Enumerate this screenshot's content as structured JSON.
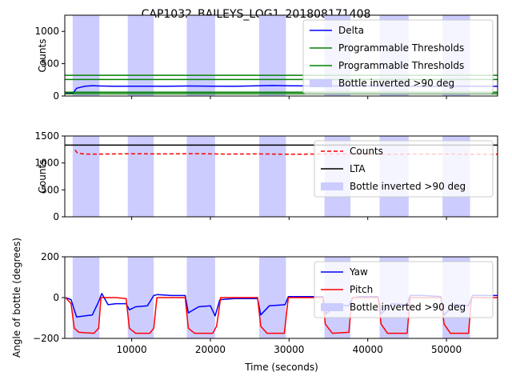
{
  "figure": {
    "suptitle": "CAP1032_BAILEYS_LOG1_201808171408",
    "xlabel": "Time (seconds)"
  },
  "colors": {
    "delta": "#0000ff",
    "thresholds": "#008000",
    "counts": "#ff0000",
    "lta": "#000000",
    "yaw": "#0000ff",
    "pitch": "#ff0000",
    "inverted_span": "#ccccff"
  },
  "chart_data": [
    {
      "type": "line",
      "ylabel": "Counts",
      "xlim": [
        1500,
        56500
      ],
      "ylim": [
        0,
        1250
      ],
      "xticks": [
        10000,
        20000,
        30000,
        40000,
        50000
      ],
      "yticks": [
        0,
        500,
        1000
      ],
      "ytick_labels": [
        "0",
        "500",
        "1000"
      ],
      "legend": [
        "Delta",
        "Programmable Thresholds",
        "Programmable Thresholds",
        "Bottle inverted >90 deg"
      ],
      "legend_position": "upper right",
      "inverted_spans": [
        [
          2500,
          5900
        ],
        [
          9500,
          12800
        ],
        [
          17000,
          20600
        ],
        [
          26200,
          29600
        ],
        [
          34500,
          37800
        ],
        [
          41500,
          45200
        ],
        [
          49500,
          53000
        ]
      ],
      "series": [
        {
          "name": "Delta",
          "style": "solid",
          "x": [
            1600,
            2500,
            3000,
            4000,
            5000,
            6000,
            8000,
            10000,
            12000,
            14000,
            17000,
            20000,
            23000,
            26000,
            28000,
            30000,
            33000,
            36000,
            40000,
            44000,
            48000,
            52000,
            56500
          ],
          "y": [
            40,
            40,
            120,
            150,
            160,
            155,
            150,
            152,
            152,
            150,
            155,
            152,
            150,
            158,
            162,
            158,
            155,
            155,
            155,
            152,
            150,
            152,
            150
          ]
        },
        {
          "name": "Programmable Thresholds",
          "style": "solid",
          "x": [
            1500,
            56500
          ],
          "y": [
            320,
            320
          ]
        },
        {
          "name": "Programmable Thresholds",
          "style": "solid",
          "x": [
            1500,
            56500
          ],
          "y": [
            255,
            255
          ]
        },
        {
          "name": "Programmable Thresholds",
          "style": "solid",
          "x": [
            1500,
            56500
          ],
          "y": [
            60,
            60
          ]
        },
        {
          "name": "Programmable Thresholds",
          "style": "solid",
          "x": [
            1500,
            56500
          ],
          "y": [
            35,
            35
          ]
        }
      ]
    },
    {
      "type": "line",
      "ylabel": "Counts",
      "xlim": [
        1500,
        56500
      ],
      "ylim": [
        0,
        1500
      ],
      "xticks": [
        10000,
        20000,
        30000,
        40000,
        50000
      ],
      "yticks": [
        0,
        500,
        1000,
        1500
      ],
      "ytick_labels": [
        "0",
        "500",
        "1000",
        "1500"
      ],
      "legend": [
        "Counts",
        "LTA",
        "Bottle inverted >90 deg"
      ],
      "legend_position": "upper right",
      "inverted_spans": [
        [
          2500,
          5900
        ],
        [
          9500,
          12800
        ],
        [
          17000,
          20600
        ],
        [
          26200,
          29600
        ],
        [
          34500,
          37800
        ],
        [
          41500,
          45200
        ],
        [
          49500,
          53000
        ]
      ],
      "series": [
        {
          "name": "Counts",
          "style": "dashed",
          "x": [
            2800,
            3100,
            4000,
            6000,
            10000,
            14000,
            18000,
            22000,
            26000,
            30000,
            34000,
            38000,
            42000,
            46000,
            50000,
            54000,
            56500
          ],
          "y": [
            1240,
            1185,
            1165,
            1165,
            1170,
            1168,
            1172,
            1165,
            1168,
            1162,
            1165,
            1168,
            1162,
            1165,
            1165,
            1160,
            1162
          ]
        },
        {
          "name": "LTA",
          "style": "solid",
          "x": [
            1500,
            56500
          ],
          "y": [
            1330,
            1330
          ]
        }
      ]
    },
    {
      "type": "line",
      "ylabel": "Angle of bottle (degrees)",
      "xlim": [
        1500,
        56500
      ],
      "ylim": [
        -200,
        200
      ],
      "xticks": [
        10000,
        20000,
        30000,
        40000,
        50000
      ],
      "xtick_labels": [
        "10000",
        "20000",
        "30000",
        "40000",
        "50000"
      ],
      "yticks": [
        -200,
        0,
        200
      ],
      "ytick_labels": [
        "−200",
        "0",
        "200"
      ],
      "legend": [
        "Yaw",
        "Pitch",
        "Bottle inverted >90 deg"
      ],
      "legend_position": "upper right",
      "inverted_spans": [
        [
          2500,
          5900
        ],
        [
          9500,
          12800
        ],
        [
          17000,
          20600
        ],
        [
          26200,
          29600
        ],
        [
          34500,
          37800
        ],
        [
          41500,
          45200
        ],
        [
          49500,
          53000
        ]
      ],
      "series": [
        {
          "name": "Yaw",
          "style": "solid",
          "x": [
            1600,
            2300,
            2700,
            3000,
            4000,
            5000,
            5800,
            6200,
            7000,
            8000,
            9300,
            9700,
            10500,
            12000,
            12800,
            13300,
            15000,
            16800,
            17200,
            18500,
            20000,
            20600,
            21200,
            23000,
            26000,
            26400,
            27500,
            29500,
            29900,
            31000,
            34300,
            34700,
            36000,
            37600,
            38100,
            39000,
            41300,
            41700,
            43000,
            45000,
            45400,
            47000,
            49300,
            49700,
            51000,
            52800,
            53300,
            56500
          ],
          "y": [
            0,
            -10,
            -60,
            -95,
            -90,
            -85,
            -20,
            20,
            -35,
            -30,
            -30,
            -60,
            -45,
            -40,
            10,
            15,
            10,
            10,
            -75,
            -45,
            -40,
            -90,
            -10,
            -5,
            -5,
            -85,
            -40,
            -35,
            5,
            5,
            5,
            -80,
            -35,
            -40,
            0,
            5,
            5,
            -80,
            -30,
            -35,
            10,
            10,
            5,
            -85,
            -35,
            -40,
            10,
            10
          ]
        },
        {
          "name": "Pitch",
          "style": "solid",
          "x": [
            1600,
            2300,
            2700,
            3300,
            5200,
            5800,
            6100,
            8000,
            9300,
            9700,
            10500,
            12300,
            12800,
            13200,
            16800,
            17200,
            18000,
            20300,
            20800,
            21300,
            26000,
            26400,
            27200,
            29400,
            29900,
            34300,
            34600,
            35500,
            37600,
            38000,
            41300,
            41700,
            42500,
            45000,
            45400,
            49300,
            49700,
            50500,
            52800,
            53200,
            56500
          ],
          "y": [
            0,
            -30,
            -150,
            -170,
            -175,
            -150,
            0,
            0,
            -5,
            -150,
            -175,
            -175,
            -150,
            0,
            0,
            -150,
            -175,
            -175,
            -140,
            0,
            0,
            -140,
            -175,
            -175,
            0,
            0,
            -130,
            -175,
            -170,
            0,
            0,
            -130,
            -175,
            -175,
            0,
            0,
            -130,
            -175,
            -175,
            0,
            0
          ]
        }
      ]
    }
  ]
}
